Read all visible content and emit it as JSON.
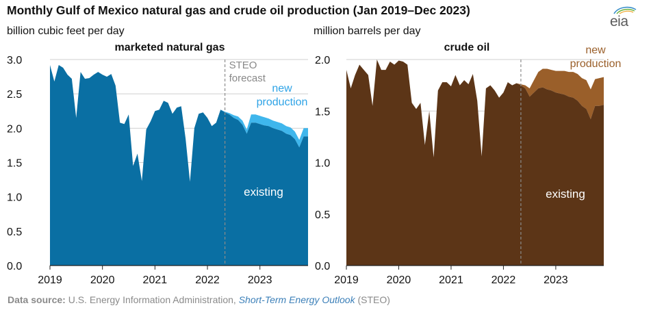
{
  "title": "Monthly Gulf of Mexico natural gas and crude oil production (Jan 2019–Dec 2023)",
  "logo_text": "eia",
  "source": {
    "label": "Data source:",
    "org": "U.S. Energy Information Administration,",
    "publication": "Short-Term Energy Outlook",
    "abbrev": "(STEO)"
  },
  "colors": {
    "gas_existing": "#0a6fa3",
    "gas_new": "#3fb6ec",
    "oil_existing": "#5c3517",
    "oil_new": "#9a5f2a",
    "new_label_gas": "#2ea3e6",
    "new_label_oil": "#9a5f2a",
    "forecast_line": "#8c8c8c"
  },
  "chart_data": [
    {
      "type": "area",
      "title": "marketed natural gas",
      "ylabel": "billion cubic feet per day",
      "ylim": [
        0,
        3
      ],
      "yticks": [
        "0.0",
        "0.5",
        "1.0",
        "1.5",
        "2.0",
        "2.5",
        "3.0"
      ],
      "xticks": [
        "2019",
        "2020",
        "2021",
        "2022",
        "2023"
      ],
      "x_start": "Jan 2019",
      "forecast_start_index": 40,
      "forecast_label": "STEO\nforecast",
      "series_labels": {
        "existing": "existing",
        "new": "new\nproduction"
      },
      "series": [
        {
          "name": "existing",
          "values": [
            2.92,
            2.68,
            2.92,
            2.88,
            2.78,
            2.72,
            2.15,
            2.82,
            2.72,
            2.73,
            2.78,
            2.82,
            2.78,
            2.75,
            2.79,
            2.62,
            2.08,
            2.06,
            2.2,
            1.45,
            1.63,
            1.23,
            1.98,
            2.1,
            2.25,
            2.27,
            2.4,
            2.37,
            2.21,
            2.3,
            2.32,
            1.85,
            1.22,
            2.0,
            2.21,
            2.23,
            2.15,
            2.03,
            2.08,
            2.27,
            2.23,
            2.2,
            2.15,
            2.12,
            2.05,
            1.92,
            2.08,
            2.08,
            2.06,
            2.04,
            2.03,
            2.0,
            1.98,
            1.96,
            1.92,
            1.9,
            1.84,
            1.72,
            1.88,
            1.88
          ]
        },
        {
          "name": "new production",
          "values": [
            0,
            0,
            0,
            0,
            0,
            0,
            0,
            0,
            0,
            0,
            0,
            0,
            0,
            0,
            0,
            0,
            0,
            0,
            0,
            0,
            0,
            0,
            0,
            0,
            0,
            0,
            0,
            0,
            0,
            0,
            0,
            0,
            0,
            0,
            0,
            0,
            0,
            0,
            0,
            0,
            0.01,
            0.02,
            0.04,
            0.05,
            0.06,
            0.06,
            0.12,
            0.12,
            0.12,
            0.12,
            0.11,
            0.11,
            0.11,
            0.11,
            0.11,
            0.11,
            0.11,
            0.11,
            0.12,
            0.12
          ]
        }
      ]
    },
    {
      "type": "area",
      "title": "crude oil",
      "ylabel": "million barrels per day",
      "ylim": [
        0,
        2
      ],
      "yticks": [
        "0.0",
        "0.5",
        "1.0",
        "1.5",
        "2.0"
      ],
      "xticks": [
        "2019",
        "2020",
        "2021",
        "2022",
        "2023"
      ],
      "x_start": "Jan 2019",
      "forecast_start_index": 40,
      "series_labels": {
        "existing": "existing",
        "new": "new\nproduction"
      },
      "series": [
        {
          "name": "existing",
          "values": [
            1.9,
            1.72,
            1.85,
            1.95,
            1.9,
            1.85,
            1.55,
            2.0,
            1.9,
            1.9,
            1.98,
            1.95,
            1.99,
            1.98,
            1.95,
            1.58,
            1.52,
            1.58,
            1.17,
            1.5,
            1.05,
            1.7,
            1.78,
            1.78,
            1.74,
            1.85,
            1.75,
            1.8,
            1.76,
            1.86,
            1.6,
            1.06,
            1.72,
            1.75,
            1.7,
            1.63,
            1.68,
            1.78,
            1.75,
            1.77,
            1.75,
            1.72,
            1.64,
            1.68,
            1.72,
            1.73,
            1.71,
            1.7,
            1.68,
            1.67,
            1.66,
            1.64,
            1.63,
            1.6,
            1.55,
            1.52,
            1.42,
            1.55,
            1.55,
            1.56
          ]
        },
        {
          "name": "new production",
          "values": [
            0,
            0,
            0,
            0,
            0,
            0,
            0,
            0,
            0,
            0,
            0,
            0,
            0,
            0,
            0,
            0,
            0,
            0,
            0,
            0,
            0,
            0,
            0,
            0,
            0,
            0,
            0,
            0,
            0,
            0,
            0,
            0,
            0,
            0,
            0,
            0,
            0,
            0,
            0,
            0,
            0.01,
            0.03,
            0.08,
            0.12,
            0.16,
            0.18,
            0.2,
            0.2,
            0.21,
            0.22,
            0.23,
            0.24,
            0.25,
            0.26,
            0.27,
            0.28,
            0.29,
            0.26,
            0.27,
            0.27
          ]
        }
      ]
    }
  ]
}
